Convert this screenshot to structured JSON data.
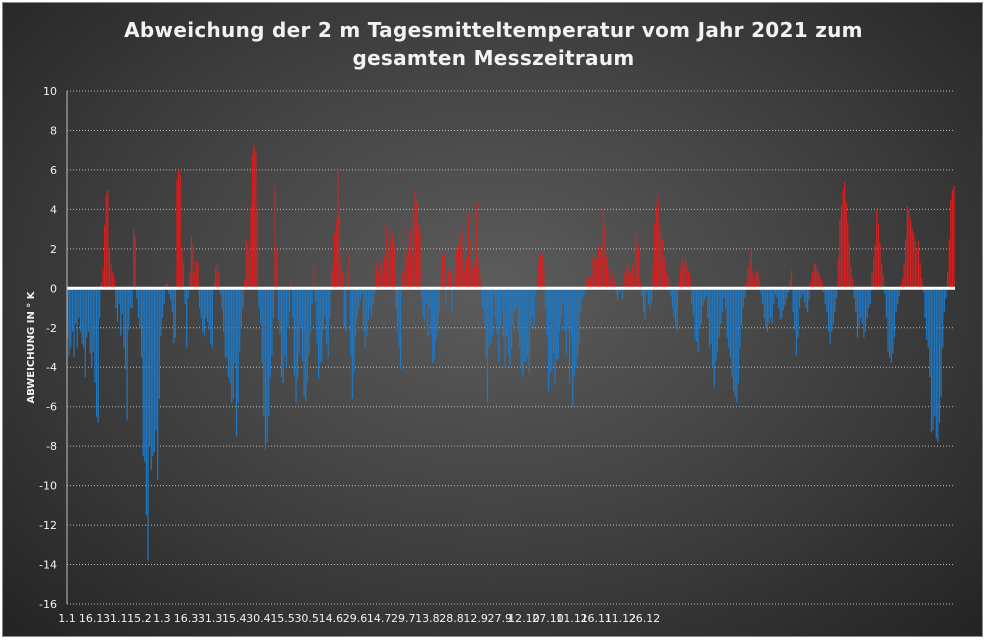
{
  "chart_data": {
    "type": "bar",
    "title_line1": "Abweichung der 2 m Tagesmitteltemperatur  vom Jahr 2021 zum",
    "title_line2": "gesamten Messzeitraum",
    "xlabel": "",
    "ylabel": "ABWEICHUNG IN ° K",
    "ylim": [
      -16,
      10
    ],
    "yticks": [
      10,
      8,
      6,
      4,
      2,
      0,
      -2,
      -4,
      -6,
      -8,
      -10,
      -12,
      -14,
      -16
    ],
    "x_tick_labels": [
      "1.1",
      "16.1",
      "31.1",
      "15.2",
      "1.3",
      "16.3",
      "31.3",
      "15.4",
      "30.4",
      "15.5",
      "30.5",
      "14.6",
      "29.6",
      "14.7",
      "29.7",
      "13.8",
      "28.8",
      "12.9",
      "27.9",
      "12.10",
      "27.10",
      "11.11",
      "26.11",
      "11.12",
      "26.12"
    ],
    "x_tick_days": [
      1,
      16,
      31,
      46,
      60,
      75,
      90,
      105,
      120,
      135,
      150,
      165,
      180,
      195,
      210,
      225,
      240,
      255,
      270,
      285,
      300,
      315,
      330,
      345,
      360
    ],
    "grid": true,
    "positive_color": "#d91f1f",
    "negative_color": "#1f78c4",
    "zero_line_color": "#ffffff",
    "series": [
      {
        "values": [
          -2.5,
          -3.4,
          -3.0,
          -2.2,
          -3.5,
          -1.8,
          -3.0,
          -1.5,
          -2.2,
          -2.8,
          -3.0,
          -4.5,
          -2.5,
          -2.2,
          -3.3,
          -4.0,
          -3.2,
          -4.8,
          -6.5,
          -6.8,
          -1.5,
          0.3,
          1.0,
          3.2,
          4.8,
          5.0,
          2.0,
          1.2,
          0.8,
          0.5,
          -1.0,
          -1.7,
          -0.8,
          -2.4,
          -1.3,
          -3.0,
          -4.1,
          -6.7,
          -2.1,
          -1.0,
          -1.0,
          3.0,
          2.7,
          -0.5,
          -1.5,
          -2.0,
          -3.5,
          -8.5,
          -8.8,
          -11.5,
          -13.8,
          -8.0,
          -9.2,
          -8.5,
          -8.3,
          -7.2,
          -9.7,
          -5.6,
          -2.4,
          -1.5,
          -0.8,
          0.2,
          0.2,
          -0.3,
          -0.6,
          -1.2,
          -2.8,
          -2.5,
          5.5,
          6.0,
          5.8,
          2.0,
          1.3,
          -0.8,
          -3.0,
          -0.5,
          0.8,
          2.6,
          2.2,
          0.8,
          1.4,
          1.3,
          -1.0,
          -1.5,
          -2.2,
          -2.4,
          -1.5,
          -1.7,
          -2.1,
          -2.8,
          -3.0,
          0.3,
          1.0,
          1.2,
          0.8,
          -0.3,
          -1.0,
          -2.2,
          -3.5,
          -3.5,
          -4.5,
          -4.8,
          -5.8,
          -5.6,
          -3.8,
          -7.5,
          -5.8,
          -3.2,
          -2.0,
          -1.0,
          0.4,
          2.5,
          2.2,
          2.0,
          4.2,
          6.8,
          7.2,
          6.9,
          4.0,
          -1.0,
          -1.8,
          -3.8,
          -6.5,
          -8.2,
          -7.8,
          -6.5,
          -4.5,
          -3.4,
          -1.5,
          5.2,
          2.0,
          -1.6,
          -2.3,
          -4.5,
          -4.8,
          -3.4,
          -4.0,
          -2.0,
          -1.2,
          0.4,
          -1.5,
          -4.4,
          -5.8,
          -4.6,
          -3.3,
          -2.0,
          -3.7,
          -5.5,
          -5.7,
          -4.8,
          -3.4,
          -2.2,
          -0.8,
          1.2,
          -0.7,
          -2.8,
          -4.6,
          -3.8,
          -3.7,
          -2.1,
          -1.5,
          -2.8,
          -3.5,
          -1.5,
          0.8,
          1.0,
          2.8,
          3.5,
          6.0,
          4.0,
          1.4,
          0.8,
          -2.0,
          -2.2,
          1.0,
          1.8,
          -3.4,
          -5.6,
          -4.2,
          -2.4,
          -1.5,
          -1.0,
          -0.6,
          -0.3,
          -2.2,
          -3.0,
          -2.4,
          -1.6,
          -1.1,
          -1.4,
          -0.8,
          -0.3,
          1.3,
          0.8,
          1.2,
          1.5,
          1.0,
          1.6,
          3.2,
          2.0,
          1.3,
          2.5,
          2.8,
          2.2,
          -1.0,
          -2.2,
          -3.0,
          -4.1,
          0.8,
          1.0,
          3.4,
          1.6,
          2.0,
          3.0,
          1.7,
          3.8,
          5.0,
          4.4,
          3.2,
          2.8,
          -0.5,
          -1.5,
          -1.7,
          -0.8,
          -2.4,
          -1.0,
          -2.3,
          -3.8,
          -3.6,
          -2.6,
          -2.2,
          -1.3,
          0.2,
          1.6,
          1.8,
          -0.8,
          0.2,
          1.0,
          0.8,
          -1.2,
          0.4,
          1.0,
          2.0,
          2.2,
          2.8,
          3.3,
          2.0,
          0.9,
          1.5,
          3.8,
          2.4,
          1.5,
          1.0,
          1.2,
          4.4,
          1.5,
          1.0,
          0.5,
          -1.0,
          -1.8,
          -3.5,
          -5.8,
          -3.0,
          -2.8,
          -2.4,
          -0.3,
          -1.5,
          -2.3,
          -3.7,
          -2.0,
          -1.2,
          -2.5,
          -4.0,
          -2.4,
          -3.4,
          -4.0,
          -3.0,
          -2.0,
          -1.2,
          -1.0,
          -2.2,
          -3.0,
          -4.1,
          -4.5,
          -3.7,
          -3.7,
          -3.5,
          -4.3,
          -2.0,
          -1.5,
          -2.0,
          -0.4,
          0.5,
          1.4,
          1.8,
          1.7,
          1.0,
          -1.0,
          -2.4,
          -5.2,
          -4.3,
          -4.2,
          -3.3,
          -4.9,
          -3.6,
          -3.6,
          -2.2,
          -1.5,
          -0.8,
          -2.2,
          -3.4,
          -2.0,
          -4.8,
          -2.5,
          -6.0,
          -4.4,
          -4.0,
          -3.5,
          -2.8,
          -1.2,
          -0.5,
          -0.3,
          0.5,
          0.6,
          0.4,
          0.6,
          1.6,
          1.8,
          1.4,
          1.5,
          2.0,
          2.2,
          1.8,
          4.0,
          3.2,
          1.6,
          1.0,
          0.4,
          0.5,
          0.8,
          0.4,
          -0.3,
          -0.6,
          -0.2,
          0.2,
          -0.5,
          0.8,
          1.0,
          1.4,
          1.0,
          0.8,
          1.2,
          0.5,
          2.2,
          2.8,
          2.1,
          0.3,
          -0.4,
          -1.2,
          -1.6,
          -0.2,
          -0.8,
          -1.0,
          -0.7,
          1.2,
          3.3,
          4.2,
          4.8,
          3.4,
          2.7,
          2.5,
          1.5,
          0.8,
          0.7,
          0.5,
          -0.4,
          -1.0,
          -1.5,
          -2.0,
          -2.2,
          0.3,
          1.0,
          1.5,
          1.2,
          1.5,
          1.2,
          0.9,
          0.5,
          -0.8,
          -1.4,
          -2.6,
          -2.7,
          -3.2,
          -2.0,
          -1.8,
          -0.9,
          -0.6,
          -0.4,
          -1.5,
          -3.0,
          -2.8,
          -4.0,
          -5.0,
          -3.7,
          -3.2,
          -2.5,
          -1.8,
          -1.2,
          -0.5,
          -1.0,
          -2.5,
          -3.0,
          -3.5,
          -4.5,
          -5.2,
          -5.5,
          -5.8,
          -4.8,
          -3.0,
          -1.9,
          -1.0,
          -0.5,
          0.3,
          1.1,
          1.5,
          2.0,
          0.9,
          0.5,
          0.9,
          0.8,
          0.5,
          -0.3,
          -0.8,
          -1.5,
          -2.0,
          -2.2,
          -1.8,
          -1.5,
          -1.8,
          -0.8,
          -0.3,
          -0.5,
          -1.0,
          -1.6,
          -1.5,
          -1.1,
          -0.9,
          -0.5,
          -0.2,
          0.4,
          0.9,
          -1.2,
          -2.1,
          -3.4,
          -2.5,
          -1.0,
          -0.5,
          -0.3,
          -0.7,
          -1.0,
          -1.2,
          -0.6,
          0.3,
          0.8,
          1.2,
          1.2,
          1.0,
          0.8,
          0.5,
          0.3,
          -0.2,
          -0.8,
          -1.2,
          -2.2,
          -2.8,
          -2.2,
          -1.8,
          -1.2,
          -0.5,
          1.5,
          3.5,
          4.2,
          5.0,
          5.4,
          4.4,
          3.4,
          2.3,
          1.1,
          0.5,
          -0.5,
          -1.2,
          -2.5,
          -2.0,
          -1.5,
          -1.8,
          -2.5,
          -2.2,
          -1.5,
          -1.0,
          -0.8,
          0.8,
          1.5,
          2.2,
          4.0,
          3.3,
          2.3,
          1.2,
          0.7,
          -0.3,
          -1.5,
          -3.2,
          -3.5,
          -3.8,
          -3.3,
          -2.5,
          -1.2,
          -0.8,
          -0.4,
          0.2,
          0.5,
          1.3,
          2.5,
          4.2,
          4.0,
          3.5,
          3.0,
          2.8,
          2.4,
          2.0,
          2.4,
          1.3,
          0.5,
          -0.2,
          -1.5,
          -2.6,
          -3.0,
          -4.5,
          -7.3,
          -7.2,
          -6.5,
          -7.6,
          -7.8,
          -6.8,
          -5.5,
          -3.0,
          -1.2,
          -0.5,
          0.8,
          2.5,
          4.5,
          5.0,
          5.2
        ]
      }
    ]
  }
}
